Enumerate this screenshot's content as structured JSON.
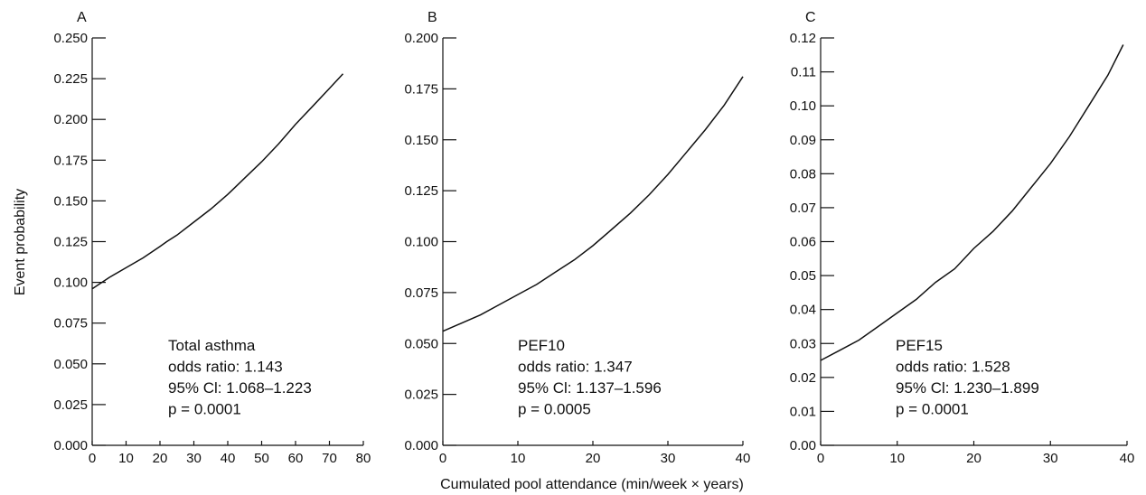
{
  "figure": {
    "ylabel": "Event probability",
    "xlabel": "Cumulated pool attendance (min/week × years)"
  },
  "chart_data": [
    {
      "type": "line",
      "panel": "A",
      "xlim": [
        0,
        80
      ],
      "ylim": [
        0,
        0.25
      ],
      "x_ticks": [
        "0",
        "10",
        "20",
        "30",
        "40",
        "50",
        "60",
        "70",
        "80"
      ],
      "y_ticks": [
        "0.000",
        "0.025",
        "0.050",
        "0.075",
        "0.100",
        "0.125",
        "0.150",
        "0.175",
        "0.200",
        "0.225",
        "0.250"
      ],
      "annotations": [
        "Total asthma",
        "odds ratio: 1.143",
        "95% Cl: 1.068–1.223",
        "p = 0.0001"
      ],
      "series": [
        {
          "x": [
            0,
            5,
            10,
            15,
            20,
            22,
            25,
            30,
            35,
            40,
            45,
            50,
            55,
            60,
            65,
            70,
            74
          ],
          "y": [
            0.096,
            0.103,
            0.109,
            0.115,
            0.122,
            0.125,
            0.129,
            0.137,
            0.145,
            0.154,
            0.164,
            0.174,
            0.185,
            0.197,
            0.208,
            0.219,
            0.228
          ]
        }
      ]
    },
    {
      "type": "line",
      "panel": "B",
      "xlim": [
        0,
        40
      ],
      "ylim": [
        0,
        0.2
      ],
      "x_ticks": [
        "0",
        "10",
        "20",
        "30",
        "40"
      ],
      "y_ticks": [
        "0.000",
        "0.025",
        "0.050",
        "0.075",
        "0.100",
        "0.125",
        "0.150",
        "0.175",
        "0.200"
      ],
      "annotations": [
        "PEF10",
        "odds ratio: 1.347",
        "95% Cl: 1.137–1.596",
        "p = 0.0005"
      ],
      "series": [
        {
          "x": [
            0,
            2.5,
            5,
            7.5,
            10,
            12.5,
            15,
            17.5,
            20,
            22.5,
            25,
            27.5,
            30,
            32.5,
            35,
            37.5,
            40
          ],
          "y": [
            0.056,
            0.06,
            0.064,
            0.069,
            0.074,
            0.079,
            0.085,
            0.091,
            0.098,
            0.106,
            0.114,
            0.123,
            0.133,
            0.144,
            0.155,
            0.167,
            0.181
          ]
        }
      ]
    },
    {
      "type": "line",
      "panel": "C",
      "xlim": [
        0,
        40
      ],
      "ylim": [
        0,
        0.12
      ],
      "x_ticks": [
        "0",
        "10",
        "20",
        "30",
        "40"
      ],
      "y_ticks": [
        "0.00",
        "0.01",
        "0.02",
        "0.03",
        "0.04",
        "0.05",
        "0.06",
        "0.07",
        "0.08",
        "0.09",
        "0.10",
        "0.11",
        "0.12"
      ],
      "annotations": [
        "PEF15",
        "odds ratio: 1.528",
        "95% Cl: 1.230–1.899",
        "p = 0.0001"
      ],
      "series": [
        {
          "x": [
            0,
            2.5,
            5,
            7.5,
            10,
            12.5,
            15,
            17.5,
            20,
            22.5,
            25,
            27.5,
            30,
            32.5,
            35,
            37.5,
            39.5
          ],
          "y": [
            0.025,
            0.028,
            0.031,
            0.035,
            0.039,
            0.043,
            0.048,
            0.052,
            0.058,
            0.063,
            0.069,
            0.076,
            0.083,
            0.091,
            0.1,
            0.109,
            0.118
          ]
        }
      ]
    }
  ]
}
